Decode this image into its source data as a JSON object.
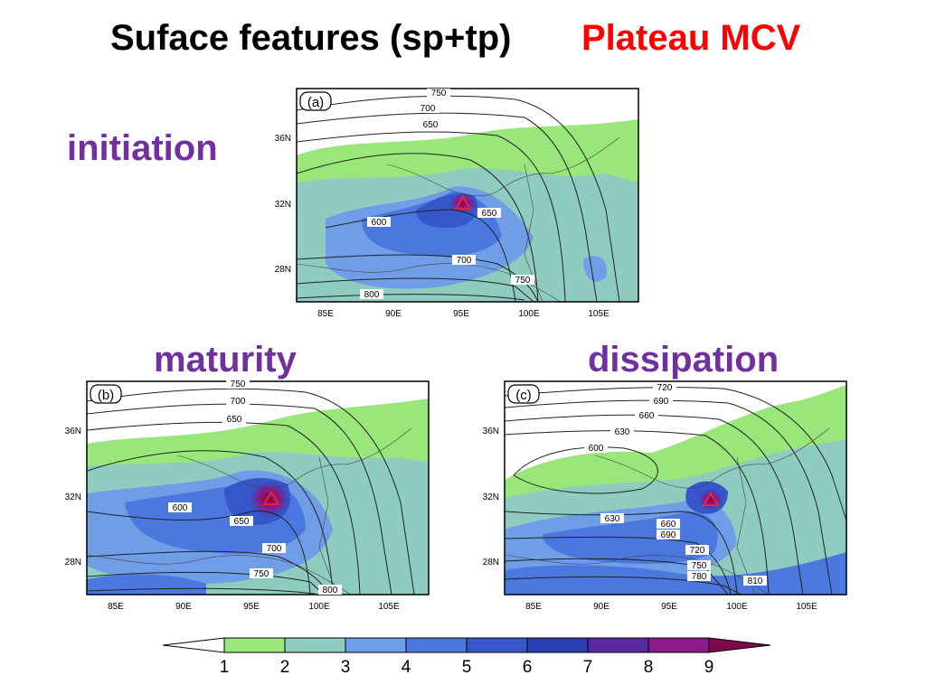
{
  "title": "Suface features (sp+tp)",
  "subtitle": "Plateau MCV",
  "colors": {
    "title": "#000000",
    "subtitle": "#ff0000",
    "stage_labels": "#7030a0",
    "precip_scale": [
      "#ffffff",
      "#99e67a",
      "#8fccc0",
      "#6f9ee6",
      "#4a78de",
      "#3557c9",
      "#2a3fb0",
      "#562a9e",
      "#8c1a8c",
      "#7d0a4a"
    ],
    "marker": "#ff2222"
  },
  "stages": [
    {
      "id": "a",
      "label": "initiation",
      "panel_letter": "(a)"
    },
    {
      "id": "b",
      "label": "maturity",
      "panel_letter": "(b)"
    },
    {
      "id": "c",
      "label": "dissipation",
      "panel_letter": "(c)"
    }
  ],
  "axes": {
    "x_ticks": [
      "85E",
      "90E",
      "95E",
      "100E",
      "105E"
    ],
    "y_ticks": [
      "36N",
      "32N",
      "28N"
    ]
  },
  "panels": {
    "a": {
      "contour_labels": [
        "750",
        "700",
        "650",
        "600",
        "650",
        "700",
        "750",
        "800"
      ]
    },
    "b": {
      "contour_labels": [
        "750",
        "700",
        "650",
        "600",
        "650",
        "700",
        "750",
        "800"
      ]
    },
    "c": {
      "contour_labels": [
        "720",
        "690",
        "660",
        "630",
        "600",
        "630",
        "660",
        "690",
        "720",
        "750",
        "780",
        "810"
      ]
    }
  },
  "colorbar": {
    "labels": [
      "1",
      "2",
      "3",
      "4",
      "5",
      "6",
      "7",
      "8",
      "9"
    ],
    "colors": [
      "#ffffff",
      "#99e67a",
      "#8fccc0",
      "#6f9ee6",
      "#4a78de",
      "#3557c9",
      "#2a3fb0",
      "#562a9e",
      "#8c1a8c",
      "#7d0a4a"
    ]
  }
}
